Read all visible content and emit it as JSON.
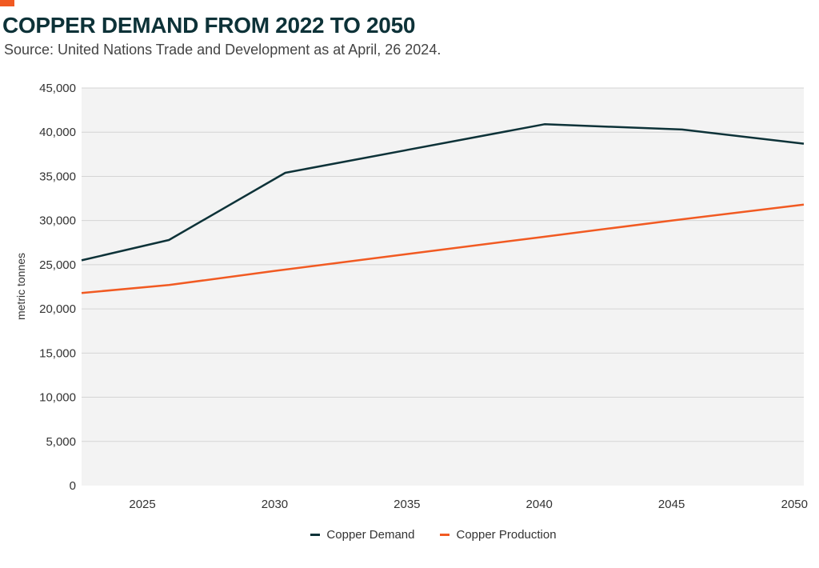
{
  "chart_data": {
    "type": "line",
    "title": "COPPER DEMAND FROM 2022 TO 2050",
    "subtitle": "Source: United Nations Trade and Development as at April, 26 2024.",
    "xlabel": "",
    "ylabel": "metric tonnes",
    "xlim": [
      2022.7,
      2050
    ],
    "ylim": [
      0,
      45000
    ],
    "x_ticks": [
      2025,
      2030,
      2035,
      2040,
      2045,
      2050
    ],
    "y_ticks": [
      0,
      5000,
      10000,
      15000,
      20000,
      25000,
      30000,
      35000,
      40000,
      45000
    ],
    "x_tick_labels": [
      "2025",
      "2030",
      "2035",
      "2040",
      "2045",
      "2050"
    ],
    "y_tick_labels": [
      "0",
      "5,000",
      "10,000",
      "15,000",
      "20,000",
      "25,000",
      "30,000",
      "35,000",
      "40,000",
      "45,000"
    ],
    "grid": true,
    "legend_position": "bottom-center",
    "series": [
      {
        "name": "Copper Demand",
        "color": "#0d3238",
        "x": [
          2022.7,
          2026,
          2030.4,
          2040.2,
          2045.4,
          2050
        ],
        "values": [
          25500,
          27800,
          35400,
          40900,
          40300,
          38700
        ]
      },
      {
        "name": "Copper Production",
        "color": "#f15a22",
        "x": [
          2022.7,
          2026,
          2030,
          2035,
          2040,
          2045,
          2050
        ],
        "values": [
          21800,
          22700,
          24300,
          26200,
          28100,
          30000,
          31800
        ]
      }
    ]
  }
}
